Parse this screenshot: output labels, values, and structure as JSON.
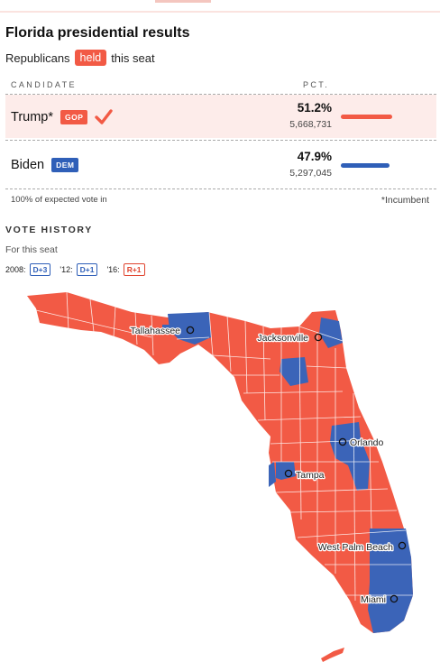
{
  "title": "Florida presidential results",
  "subtitle": {
    "before": "Republicans",
    "badge": "held",
    "after": "this seat"
  },
  "table": {
    "col_candidate": "CANDIDATE",
    "col_pct": "PCT.",
    "rows": [
      {
        "name": "Trump*",
        "party": "GOP",
        "pct": "51.2%",
        "votes": "5,668,731",
        "share": 0.512,
        "winner": true,
        "color": "#f25a45"
      },
      {
        "name": "Biden",
        "party": "DEM",
        "pct": "47.9%",
        "votes": "5,297,045",
        "share": 0.479,
        "winner": false,
        "color": "#2f5fb8"
      }
    ],
    "footnote_left": "100% of expected vote in",
    "footnote_right": "*Incumbent"
  },
  "history": {
    "heading": "VOTE HISTORY",
    "subheading": "For this seat",
    "entries": [
      {
        "year": "2008:",
        "margin": "D+3",
        "party": "d"
      },
      {
        "year": "'12:",
        "margin": "D+1",
        "party": "d"
      },
      {
        "year": "'16:",
        "margin": "R+1",
        "party": "r"
      }
    ]
  },
  "map": {
    "colors": {
      "republican": "#f25a45",
      "democrat": "#3b64b8",
      "county_border": "#ffffff"
    },
    "cities": [
      "Tallahassee",
      "Jacksonville",
      "Orlando",
      "Tampa",
      "West Palm Beach",
      "Miami"
    ]
  }
}
